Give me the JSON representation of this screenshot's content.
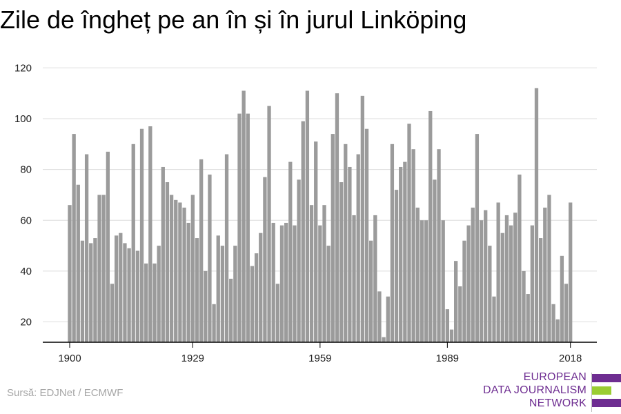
{
  "colors": {
    "bar": "#9b9b9b",
    "grid": "#dcdcdc",
    "axis": "#000000",
    "logo_purple": "#6e2d91",
    "logo_green": "#9acd32"
  },
  "chart_data": {
    "type": "bar",
    "title": "Zile de îngheț pe an în și în jurul Linköping",
    "xlabel": "",
    "ylabel": "",
    "x_tick_labels": [
      "1900",
      "1929",
      "1959",
      "1989",
      "2018"
    ],
    "y_ticks": [
      20,
      40,
      60,
      80,
      100,
      120
    ],
    "ylim": [
      12,
      122
    ],
    "grid": true,
    "categories": [
      1900,
      1901,
      1902,
      1903,
      1904,
      1905,
      1906,
      1907,
      1908,
      1909,
      1910,
      1911,
      1912,
      1913,
      1914,
      1915,
      1916,
      1917,
      1918,
      1919,
      1920,
      1921,
      1922,
      1923,
      1924,
      1925,
      1926,
      1927,
      1928,
      1929,
      1930,
      1931,
      1932,
      1933,
      1934,
      1935,
      1936,
      1937,
      1938,
      1939,
      1940,
      1941,
      1942,
      1943,
      1944,
      1945,
      1946,
      1947,
      1948,
      1949,
      1950,
      1951,
      1952,
      1953,
      1954,
      1955,
      1956,
      1957,
      1958,
      1959,
      1960,
      1961,
      1962,
      1963,
      1964,
      1965,
      1966,
      1967,
      1968,
      1969,
      1970,
      1971,
      1972,
      1973,
      1974,
      1975,
      1976,
      1977,
      1978,
      1979,
      1980,
      1981,
      1982,
      1983,
      1984,
      1985,
      1986,
      1987,
      1988,
      1989,
      1990,
      1991,
      1992,
      1993,
      1994,
      1995,
      1996,
      1997,
      1998,
      1999,
      2000,
      2001,
      2002,
      2003,
      2004,
      2005,
      2006,
      2007,
      2008,
      2009,
      2010,
      2011,
      2012,
      2013,
      2014,
      2015,
      2016,
      2017,
      2018
    ],
    "values": [
      66,
      94,
      74,
      52,
      86,
      51,
      53,
      70,
      70,
      87,
      35,
      54,
      55,
      51,
      49,
      90,
      48,
      96,
      43,
      97,
      43,
      50,
      81,
      75,
      70,
      68,
      67,
      65,
      59,
      70,
      53,
      84,
      40,
      78,
      27,
      54,
      50,
      86,
      37,
      50,
      102,
      111,
      102,
      42,
      47,
      55,
      77,
      105,
      59,
      35,
      58,
      59,
      83,
      58,
      76,
      99,
      111,
      66,
      91,
      58,
      66,
      50,
      94,
      110,
      75,
      90,
      81,
      62,
      86,
      109,
      96,
      52,
      62,
      32,
      14,
      30,
      90,
      72,
      81,
      83,
      98,
      88,
      65,
      60,
      60,
      103,
      76,
      88,
      60,
      25,
      17,
      44,
      34,
      52,
      58,
      65,
      94,
      60,
      64,
      50,
      30,
      67,
      55,
      62,
      58,
      63,
      78,
      40,
      31,
      58,
      112,
      53,
      65,
      70,
      27,
      21,
      46,
      35,
      67
    ]
  },
  "source": "Sursă: EDJNet / ECMWF",
  "logo": {
    "line1": "EUROPEAN",
    "line2": "DATA JOURNALISM",
    "line3": "NETWORK"
  }
}
